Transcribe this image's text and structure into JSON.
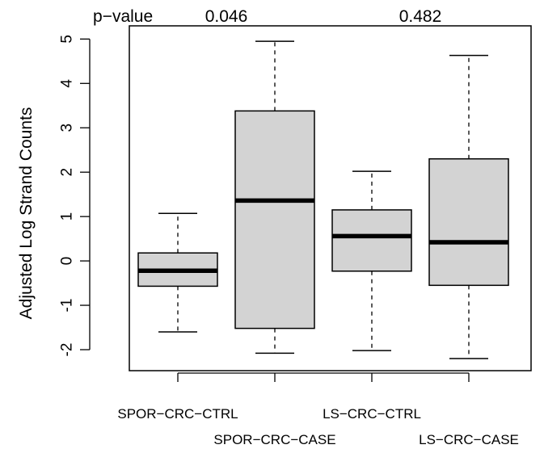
{
  "chart_data": {
    "type": "box",
    "ylabel": "Adjusted Log Strand Counts",
    "ylim": [
      -2.5,
      5.3
    ],
    "yticks": [
      "-2",
      "-1",
      "0",
      "1",
      "2",
      "3",
      "4",
      "5"
    ],
    "y_tick_values": [
      -2,
      -1,
      0,
      1,
      2,
      3,
      4,
      5
    ],
    "categories": [
      "SPOR−CRC−CTRL",
      "SPOR−CRC−CASE",
      "LS−CRC−CTRL",
      "LS−CRC−CASE"
    ],
    "boxes": [
      {
        "min": -1.6,
        "q1": -0.57,
        "median": -0.22,
        "q3": 0.18,
        "max": 1.07
      },
      {
        "min": -2.08,
        "q1": -1.52,
        "median": 1.36,
        "q3": 3.38,
        "max": 4.95
      },
      {
        "min": -2.02,
        "q1": -0.23,
        "median": 0.56,
        "q3": 1.15,
        "max": 2.02
      },
      {
        "min": -2.2,
        "q1": -0.55,
        "median": 0.42,
        "q3": 2.3,
        "max": 4.63
      }
    ],
    "box_fill": "#d3d3d3",
    "annotation_label": "p−value",
    "pvalues": [
      "0.046",
      "0.482"
    ]
  }
}
